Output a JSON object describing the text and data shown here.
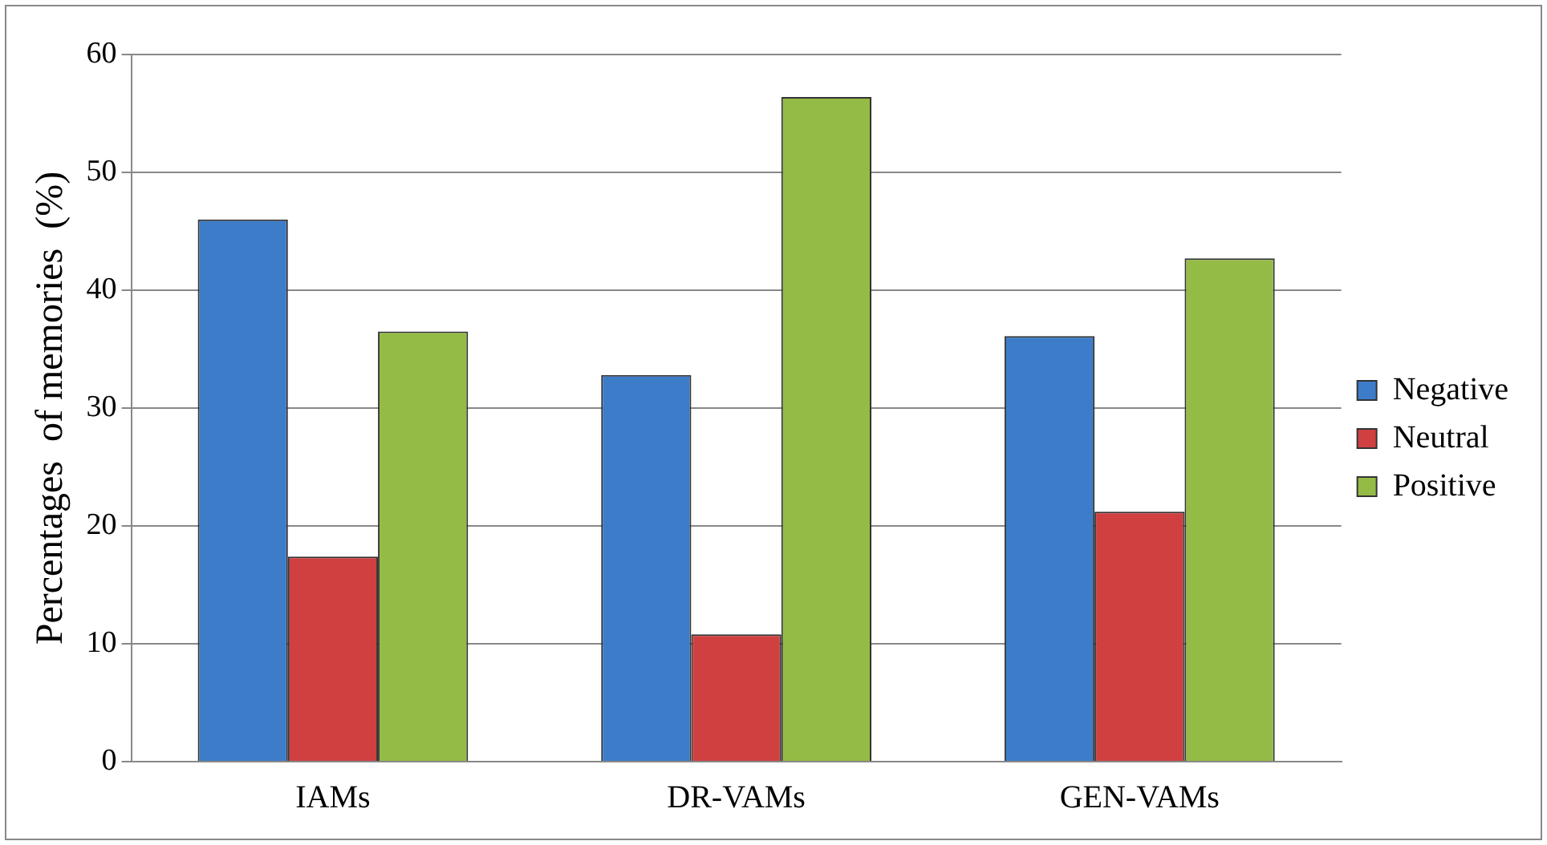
{
  "chart_data": {
    "type": "bar",
    "ylabel": "Percentages  of memories  (%)",
    "categories": [
      "IAMs",
      "DR-VAMs",
      "GEN-VAMs"
    ],
    "series": [
      {
        "name": "Negative",
        "color": "#3d7cc9",
        "values": [
          46.0,
          32.8,
          36.1
        ]
      },
      {
        "name": "Neutral",
        "color": "#d04040",
        "values": [
          17.4,
          10.8,
          21.2
        ]
      },
      {
        "name": "Positive",
        "color": "#94bb45",
        "values": [
          36.5,
          56.4,
          42.7
        ]
      }
    ],
    "ylim": [
      0,
      60
    ],
    "yticks": [
      0,
      10,
      20,
      30,
      40,
      50,
      60
    ],
    "grid": "y",
    "legend": "right"
  }
}
